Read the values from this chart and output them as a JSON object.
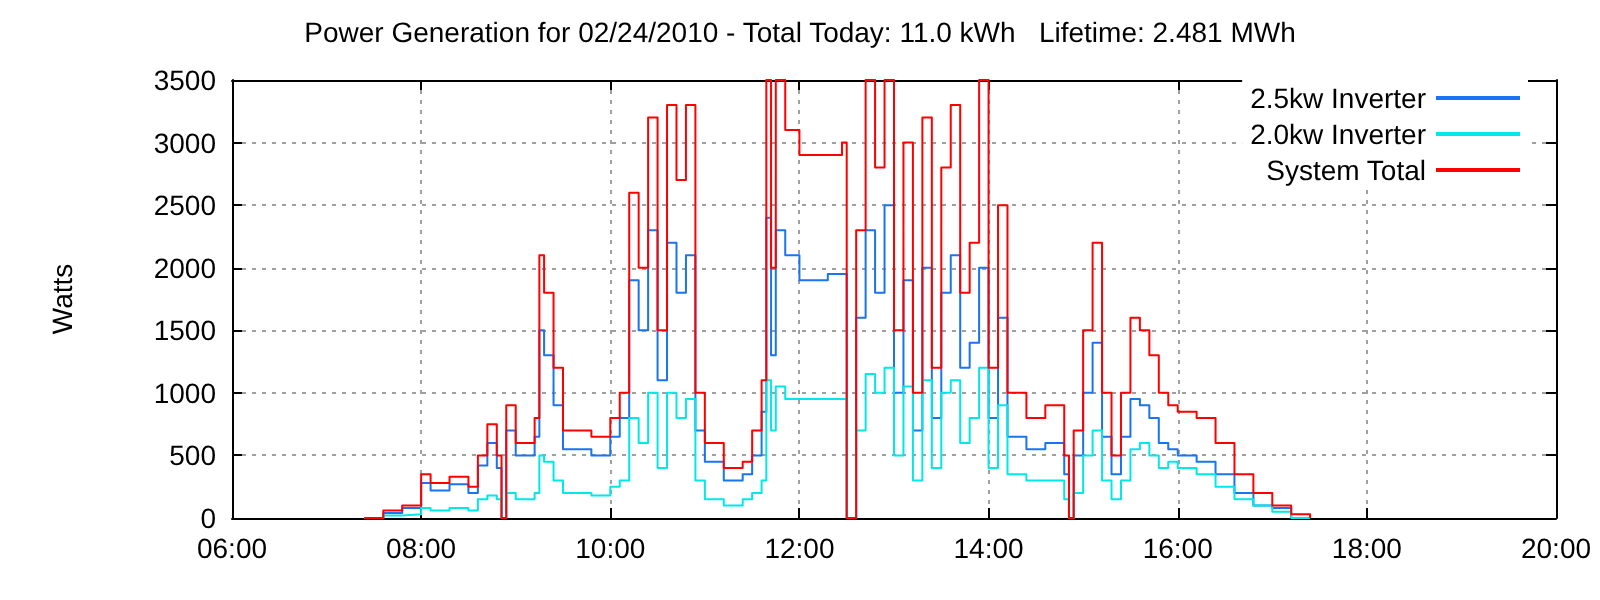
{
  "chart_data": {
    "type": "step",
    "title": "Power Generation for 02/24/2010 - Total Today: 11.0 kWh   Lifetime: 2.481 MWh",
    "ylabel": "Watts",
    "x": [
      7.4,
      7.6,
      7.8,
      8.0,
      8.1,
      8.3,
      8.5,
      8.6,
      8.7,
      8.8,
      8.85,
      8.9,
      9.0,
      9.2,
      9.25,
      9.3,
      9.4,
      9.5,
      9.7,
      9.8,
      10.0,
      10.1,
      10.2,
      10.3,
      10.4,
      10.5,
      10.6,
      10.7,
      10.8,
      10.9,
      11.0,
      11.2,
      11.4,
      11.5,
      11.6,
      11.65,
      11.7,
      11.75,
      11.85,
      12.0,
      12.3,
      12.45,
      12.5,
      12.6,
      12.7,
      12.8,
      12.9,
      13.0,
      13.1,
      13.2,
      13.3,
      13.4,
      13.5,
      13.6,
      13.7,
      13.8,
      13.9,
      14.0,
      14.1,
      14.2,
      14.4,
      14.6,
      14.8,
      14.85,
      14.9,
      15.0,
      15.1,
      15.2,
      15.3,
      15.4,
      15.5,
      15.6,
      15.7,
      15.8,
      15.9,
      16.0,
      16.2,
      16.4,
      16.6,
      16.8,
      17.0,
      17.2,
      17.4
    ],
    "series": [
      {
        "name": "2.5kw Inverter",
        "color": "#1874f0",
        "values": [
          0,
          40,
          80,
          280,
          220,
          270,
          200,
          420,
          600,
          400,
          0,
          700,
          500,
          650,
          1500,
          1300,
          900,
          550,
          550,
          500,
          650,
          800,
          1900,
          1500,
          2300,
          1100,
          2200,
          1800,
          2100,
          700,
          450,
          300,
          350,
          500,
          850,
          2400,
          1300,
          2300,
          2100,
          1900,
          1950,
          1950,
          0,
          1600,
          2300,
          1800,
          2500,
          1000,
          1900,
          700,
          2000,
          800,
          1800,
          2100,
          1200,
          1400,
          2000,
          800,
          1600,
          650,
          550,
          600,
          350,
          0,
          500,
          1000,
          1400,
          650,
          350,
          650,
          950,
          900,
          800,
          600,
          550,
          500,
          450,
          350,
          200,
          100,
          80,
          0
        ],
        "x": [
          7.4,
          7.6,
          7.8,
          8.0,
          8.1,
          8.3,
          8.5,
          8.6,
          8.7,
          8.8,
          8.85,
          8.9,
          9.0,
          9.2,
          9.25,
          9.3,
          9.4,
          9.5,
          9.7,
          9.8,
          10.0,
          10.1,
          10.2,
          10.3,
          10.4,
          10.5,
          10.6,
          10.7,
          10.8,
          10.9,
          11.0,
          11.2,
          11.4,
          11.5,
          11.6,
          11.65,
          11.7,
          11.75,
          11.85,
          12.0,
          12.3,
          12.45,
          12.5,
          12.6,
          12.7,
          12.8,
          12.9,
          13.0,
          13.1,
          13.2,
          13.3,
          13.4,
          13.5,
          13.6,
          13.7,
          13.8,
          13.9,
          14.0,
          14.1,
          14.2,
          14.4,
          14.6,
          14.8,
          14.85,
          14.9,
          15.0,
          15.1,
          15.2,
          15.3,
          15.4,
          15.5,
          15.6,
          15.7,
          15.8,
          15.9,
          16.0,
          16.2,
          16.4,
          16.6,
          16.8,
          17.0,
          17.2
        ]
      },
      {
        "name": "2.0kw Inverter",
        "color": "#00e8e8",
        "values": [
          0,
          20,
          30,
          80,
          60,
          80,
          60,
          150,
          180,
          150,
          0,
          200,
          150,
          200,
          500,
          450,
          300,
          200,
          200,
          180,
          250,
          300,
          800,
          600,
          1000,
          400,
          1000,
          800,
          950,
          300,
          150,
          100,
          150,
          200,
          300,
          1100,
          700,
          1050,
          950,
          950,
          950,
          950,
          0,
          700,
          1150,
          1000,
          1200,
          500,
          1050,
          300,
          1100,
          400,
          1000,
          1100,
          600,
          800,
          1200,
          400,
          900,
          350,
          300,
          300,
          150,
          0,
          200,
          500,
          700,
          300,
          150,
          300,
          550,
          600,
          500,
          400,
          450,
          400,
          350,
          250,
          150,
          100,
          50,
          0,
          0
        ]
      },
      {
        "name": "System Total",
        "color": "#ff0000",
        "values": [
          0,
          60,
          100,
          350,
          280,
          330,
          250,
          500,
          750,
          500,
          0,
          900,
          600,
          800,
          2100,
          1800,
          1200,
          700,
          700,
          650,
          800,
          1000,
          2600,
          2000,
          3200,
          1500,
          3300,
          2700,
          3300,
          1000,
          600,
          400,
          450,
          700,
          1100,
          3500,
          2000,
          3500,
          3100,
          2900,
          2900,
          3000,
          0,
          2300,
          3500,
          2800,
          3500,
          1500,
          3000,
          1000,
          3200,
          1200,
          2800,
          3300,
          1800,
          2200,
          3500,
          1200,
          2500,
          1000,
          800,
          900,
          500,
          0,
          700,
          1500,
          2200,
          1000,
          500,
          1000,
          1600,
          1500,
          1300,
          1000,
          900,
          850,
          800,
          600,
          350,
          200,
          100,
          30,
          0
        ]
      }
    ],
    "xlim": [
      6,
      20
    ],
    "xticks": [
      {
        "value": 6,
        "label": "06:00"
      },
      {
        "value": 8,
        "label": "08:00"
      },
      {
        "value": 10,
        "label": "10:00"
      },
      {
        "value": 12,
        "label": "12:00"
      },
      {
        "value": 14,
        "label": "14:00"
      },
      {
        "value": 16,
        "label": "16:00"
      },
      {
        "value": 18,
        "label": "18:00"
      },
      {
        "value": 20,
        "label": "20:00"
      }
    ],
    "ylim": [
      0,
      3500
    ],
    "yticks": [
      0,
      500,
      1000,
      1500,
      2000,
      2500,
      3000,
      3500
    ],
    "grid": true,
    "legend": "top right"
  }
}
